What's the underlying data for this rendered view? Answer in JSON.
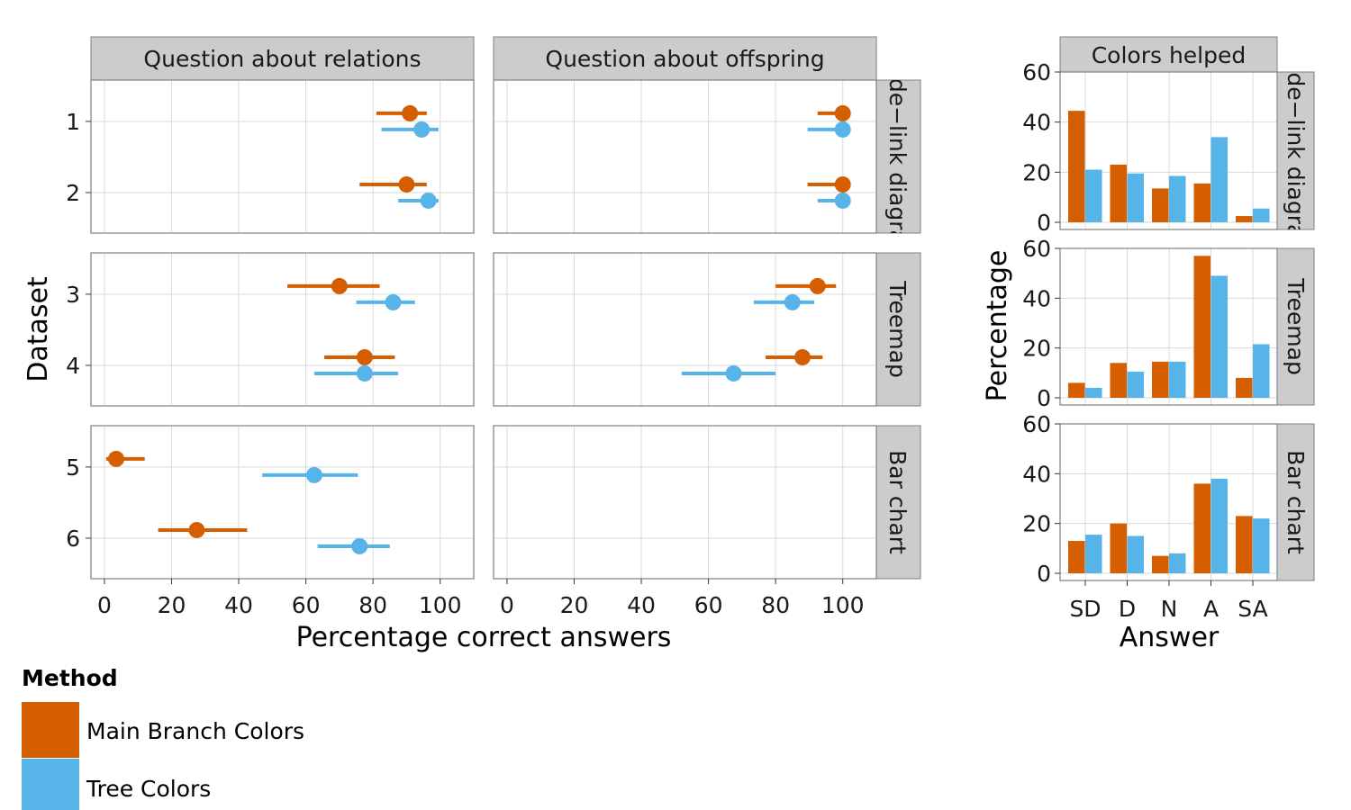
{
  "colors": {
    "main_branch": "#D55E00",
    "tree": "#56B4E9",
    "strip_bg": "#CCCCCC",
    "grid": "#D9D9D9",
    "panel_border": "#7F7F7F"
  },
  "chart_data": [
    {
      "type": "scatter",
      "subtype": "dot-with-error-bars (faceted)",
      "xlabel": "Percentage correct answers",
      "ylabel": "Dataset",
      "xlim": [
        -4,
        110
      ],
      "x_ticks": [
        0,
        20,
        40,
        60,
        80,
        100
      ],
      "grid": true,
      "columns": [
        "Question about relations",
        "Question about offspring"
      ],
      "rows": [
        "Node−link diagram",
        "Treemap",
        "Bar chart"
      ],
      "row_datasets": [
        [
          1,
          2
        ],
        [
          3,
          4
        ],
        [
          5,
          6
        ]
      ],
      "legend": {
        "title": "Method",
        "position": "bottom-left",
        "entries": [
          "Main Branch Colors",
          "Tree Colors"
        ]
      },
      "points": [
        {
          "column": 0,
          "dataset": 1,
          "method": "Main Branch Colors",
          "value": 91,
          "low": 81,
          "high": 96
        },
        {
          "column": 0,
          "dataset": 1,
          "method": "Tree Colors",
          "value": 94.5,
          "low": 82.5,
          "high": 99.5
        },
        {
          "column": 0,
          "dataset": 2,
          "method": "Main Branch Colors",
          "value": 90,
          "low": 76,
          "high": 96
        },
        {
          "column": 0,
          "dataset": 2,
          "method": "Tree Colors",
          "value": 96.5,
          "low": 87.5,
          "high": 99.5
        },
        {
          "column": 0,
          "dataset": 3,
          "method": "Main Branch Colors",
          "value": 70,
          "low": 54.5,
          "high": 82
        },
        {
          "column": 0,
          "dataset": 3,
          "method": "Tree Colors",
          "value": 86,
          "low": 75,
          "high": 92.5
        },
        {
          "column": 0,
          "dataset": 4,
          "method": "Main Branch Colors",
          "value": 77.5,
          "low": 65.5,
          "high": 86.5
        },
        {
          "column": 0,
          "dataset": 4,
          "method": "Tree Colors",
          "value": 77.5,
          "low": 62.5,
          "high": 87.5
        },
        {
          "column": 0,
          "dataset": 5,
          "method": "Main Branch Colors",
          "value": 3.5,
          "low": 0.5,
          "high": 12
        },
        {
          "column": 0,
          "dataset": 5,
          "method": "Tree Colors",
          "value": 62.5,
          "low": 47,
          "high": 75.5
        },
        {
          "column": 0,
          "dataset": 6,
          "method": "Main Branch Colors",
          "value": 27.5,
          "low": 16,
          "high": 42.5
        },
        {
          "column": 0,
          "dataset": 6,
          "method": "Tree Colors",
          "value": 76,
          "low": 63.5,
          "high": 85
        },
        {
          "column": 1,
          "dataset": 1,
          "method": "Main Branch Colors",
          "value": 100,
          "low": 92.5,
          "high": 100
        },
        {
          "column": 1,
          "dataset": 1,
          "method": "Tree Colors",
          "value": 100,
          "low": 89.5,
          "high": 100
        },
        {
          "column": 1,
          "dataset": 2,
          "method": "Main Branch Colors",
          "value": 100,
          "low": 89.5,
          "high": 100
        },
        {
          "column": 1,
          "dataset": 2,
          "method": "Tree Colors",
          "value": 100,
          "low": 92.5,
          "high": 100
        },
        {
          "column": 1,
          "dataset": 3,
          "method": "Main Branch Colors",
          "value": 92.5,
          "low": 80,
          "high": 98
        },
        {
          "column": 1,
          "dataset": 3,
          "method": "Tree Colors",
          "value": 85,
          "low": 73.5,
          "high": 91.5
        },
        {
          "column": 1,
          "dataset": 4,
          "method": "Main Branch Colors",
          "value": 88,
          "low": 77,
          "high": 94
        },
        {
          "column": 1,
          "dataset": 4,
          "method": "Tree Colors",
          "value": 67.5,
          "low": 52,
          "high": 80
        }
      ]
    },
    {
      "type": "bar",
      "subtype": "grouped bars (faceted)",
      "title": "Colors helped",
      "xlabel": "Answer",
      "ylabel": "Percentage",
      "categories": [
        "SD",
        "D",
        "N",
        "A",
        "SA"
      ],
      "ylim": [
        0,
        60
      ],
      "y_ticks": [
        0,
        20,
        40,
        60
      ],
      "grid": true,
      "facets": [
        {
          "row": "Node−link diagram",
          "series": [
            {
              "name": "Main Branch Colors",
              "values": [
                44.5,
                23,
                13.5,
                15.5,
                2.5
              ]
            },
            {
              "name": "Tree Colors",
              "values": [
                21,
                19.5,
                18.5,
                34,
                5.5
              ]
            }
          ]
        },
        {
          "row": "Treemap",
          "series": [
            {
              "name": "Main Branch Colors",
              "values": [
                6,
                14,
                14.5,
                57,
                8
              ]
            },
            {
              "name": "Tree Colors",
              "values": [
                4,
                10.5,
                14.5,
                49,
                21.5
              ]
            }
          ]
        },
        {
          "row": "Bar chart",
          "series": [
            {
              "name": "Main Branch Colors",
              "values": [
                13,
                20,
                7,
                36,
                23
              ]
            },
            {
              "name": "Tree Colors",
              "values": [
                15.5,
                15,
                8,
                38,
                22
              ]
            }
          ]
        }
      ]
    }
  ]
}
